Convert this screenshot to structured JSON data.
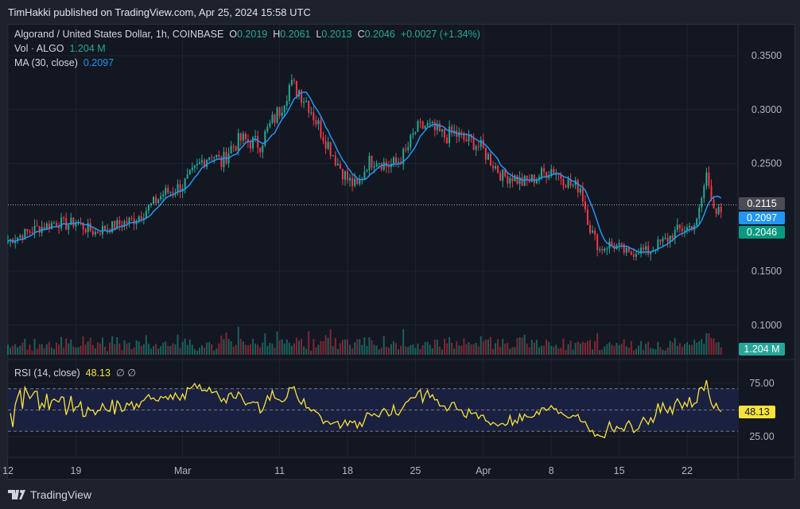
{
  "header": {
    "published": "TimHakki published on TradingView.com, Apr 25, 2024 15:58 UTC"
  },
  "legend": {
    "symbol": "Algorand / United States Dollar, 1h, COINBASE",
    "o_label": "O",
    "o": "0.2019",
    "h_label": "H",
    "h": "0.2061",
    "l_label": "L",
    "l": "0.2013",
    "c_label": "C",
    "c": "0.2046",
    "change": "+0.0027 (+1.34%)",
    "vol_label": "Vol · ALGO",
    "vol": "1.204 M",
    "ma_label": "MA (30, close)",
    "ma": "0.2097",
    "rsi_label": "RSI (14, close)",
    "rsi": "48.13",
    "rsi_extra": "∅ ∅"
  },
  "tags": {
    "prev": "0.2115",
    "ma": "0.2097",
    "last": "0.2046",
    "vol": "1.204 M",
    "rsi": "48.13"
  },
  "footer": {
    "brand": "TradingView"
  },
  "colors": {
    "up": "#22ab94",
    "down": "#f23645",
    "ma": "#2196f3",
    "rsi": "#f7e33b",
    "bg": "#131722"
  },
  "chart_data": {
    "type": "candlestick",
    "title": "Algorand / United States Dollar, 1h, COINBASE",
    "price_ticks": [
      "0.3500",
      "0.3000",
      "0.2500",
      "0.1500",
      "0.1000"
    ],
    "price_tick_values": [
      0.35,
      0.3,
      0.25,
      0.15,
      0.1
    ],
    "rsi_ticks": [
      "75.00",
      "25.00"
    ],
    "rsi_tick_values": [
      75,
      25
    ],
    "x_ticks": [
      {
        "label": "12",
        "day": 0
      },
      {
        "label": "19",
        "day": 7
      },
      {
        "label": "Mar",
        "day": 18
      },
      {
        "label": "11",
        "day": 28
      },
      {
        "label": "18",
        "day": 35
      },
      {
        "label": "25",
        "day": 42
      },
      {
        "label": "Apr",
        "day": 49
      },
      {
        "label": "8",
        "day": 56
      },
      {
        "label": "15",
        "day": 63
      },
      {
        "label": "22",
        "day": 70
      }
    ],
    "x_start": "Feb 12",
    "daily_close_approx": [
      0.178,
      0.182,
      0.186,
      0.19,
      0.192,
      0.196,
      0.193,
      0.196,
      0.19,
      0.186,
      0.19,
      0.192,
      0.195,
      0.198,
      0.205,
      0.213,
      0.222,
      0.225,
      0.23,
      0.24,
      0.252,
      0.26,
      0.25,
      0.265,
      0.272,
      0.27,
      0.268,
      0.285,
      0.3,
      0.322,
      0.318,
      0.305,
      0.285,
      0.268,
      0.25,
      0.235,
      0.228,
      0.25,
      0.255,
      0.248,
      0.25,
      0.26,
      0.28,
      0.285,
      0.28,
      0.275,
      0.278,
      0.272,
      0.27,
      0.262,
      0.25,
      0.238,
      0.238,
      0.232,
      0.235,
      0.24,
      0.245,
      0.238,
      0.23,
      0.228,
      0.19,
      0.17,
      0.175,
      0.172,
      0.165,
      0.17,
      0.168,
      0.175,
      0.18,
      0.188,
      0.19,
      0.195,
      0.24,
      0.2046
    ],
    "last_close": 0.2046,
    "prev_close": 0.2115,
    "ma_value": 0.2097,
    "ma_period": 30,
    "rsi_period": 14,
    "rsi_value": 48.13
  }
}
